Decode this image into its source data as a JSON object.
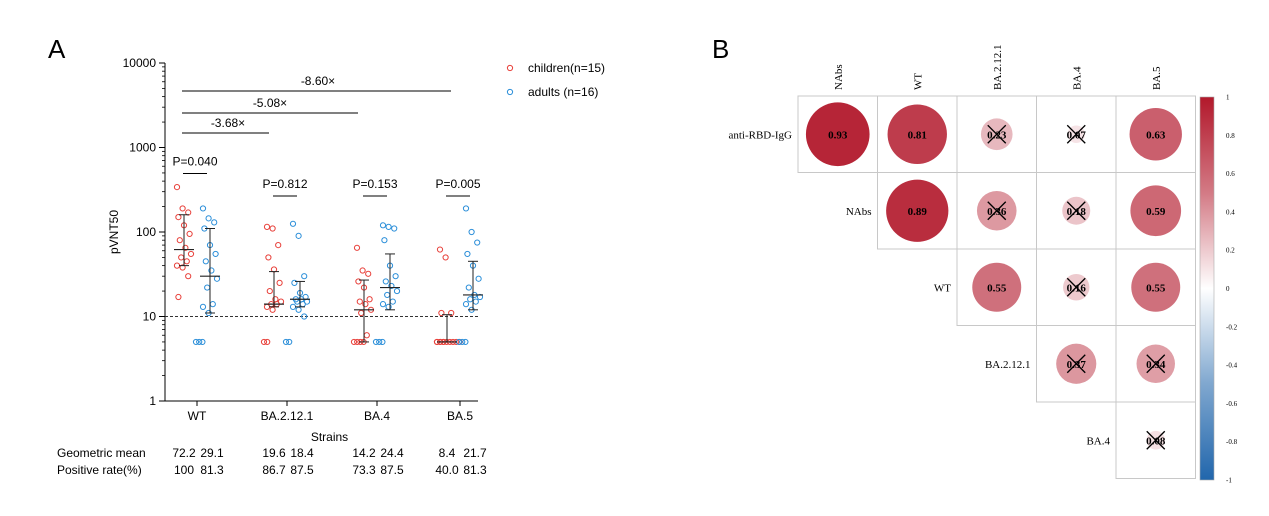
{
  "panels": {
    "a_label": "A",
    "b_label": "B"
  },
  "chart_data": [
    {
      "type": "scatter",
      "panel": "A",
      "xlabel": "Strains",
      "ylabel": "pVNT50",
      "y_scale": "log",
      "ylim": [
        1,
        10000
      ],
      "y_ticks": [
        {
          "value": 1,
          "label": "1"
        },
        {
          "value": 10,
          "label": "10"
        },
        {
          "value": 100,
          "label": "100"
        },
        {
          "value": 1000,
          "label": "1000"
        },
        {
          "value": 10000,
          "label": "10000"
        }
      ],
      "categories": [
        "WT",
        "BA.2.12.1",
        "BA.4",
        "BA.5"
      ],
      "reference_line": 10,
      "legend_position": "top-right",
      "series": [
        {
          "name": "children(n=15)",
          "color": "#e8413b",
          "values": [
            [
              340,
              190,
              170,
              150,
              120,
              95,
              80,
              65,
              55,
              50,
              45,
              40,
              38,
              30,
              17
            ],
            [
              115,
              110,
              70,
              50,
              36,
              25,
              20,
              16,
              15,
              14,
              14,
              13,
              12,
              5,
              5
            ],
            [
              65,
              35,
              32,
              26,
              22,
              16,
              15,
              14,
              12,
              11,
              6,
              5,
              5,
              5,
              5
            ],
            [
              62,
              50,
              11,
              11,
              5,
              5,
              5,
              5,
              5,
              5,
              5,
              5,
              5,
              5,
              5
            ]
          ],
          "median": [
            62,
            14,
            12,
            5
          ],
          "iqr": [
            [
              40,
              160
            ],
            [
              13,
              34
            ],
            [
              5,
              27
            ],
            [
              5,
              10.5
            ]
          ]
        },
        {
          "name": "adults (n=16)",
          "color": "#2c8fd9",
          "values": [
            [
              190,
              145,
              130,
              110,
              70,
              55,
              45,
              35,
              28,
              22,
              14,
              13,
              11,
              5,
              5,
              5
            ],
            [
              125,
              90,
              30,
              25,
              19,
              17,
              16,
              16,
              15,
              15,
              14,
              13,
              12,
              10,
              5,
              5
            ],
            [
              120,
              115,
              110,
              80,
              40,
              30,
              26,
              23,
              20,
              18,
              15,
              14,
              13,
              5,
              5,
              5
            ],
            [
              190,
              100,
              75,
              55,
              40,
              28,
              22,
              18,
              17,
              16,
              15,
              14,
              12,
              5,
              5,
              5
            ]
          ],
          "median": [
            30,
            16,
            22,
            18
          ],
          "iqr": [
            [
              11,
              110
            ],
            [
              13,
              26
            ],
            [
              12,
              55
            ],
            [
              12,
              45
            ]
          ]
        }
      ],
      "pvalue_labels": [
        "P=0.040",
        "P=0.812",
        "P=0.153",
        "P=0.005"
      ],
      "fold_changes": [
        {
          "label": "-3.68×",
          "from": 0,
          "to": 1
        },
        {
          "label": "-5.08×",
          "from": 0,
          "to": 2
        },
        {
          "label": "-8.60×",
          "from": 0,
          "to": 3
        }
      ],
      "table": {
        "rows": [
          {
            "label": "Geometric mean",
            "values": [
              [
                "72.2",
                "29.1"
              ],
              [
                "19.6",
                "18.4"
              ],
              [
                "14.2",
                "24.4"
              ],
              [
                "8.4",
                "21.7"
              ]
            ]
          },
          {
            "label": "Positive rate(%)",
            "values": [
              [
                "100",
                "81.3"
              ],
              [
                "86.7",
                "87.5"
              ],
              [
                "73.3",
                "87.5"
              ],
              [
                "40.0",
                "81.3"
              ]
            ]
          }
        ]
      }
    },
    {
      "type": "heatmap",
      "panel": "B",
      "subtype": "correlation-circles",
      "columns": [
        "NAbs",
        "WT",
        "BA.2.12.1",
        "BA.4",
        "BA.5"
      ],
      "rows": [
        "anti-RBD-IgG",
        "NAbs",
        "WT",
        "BA.2.12.1",
        "BA.4"
      ],
      "cells": [
        {
          "row": 0,
          "col": 0,
          "value": 0.93,
          "label": "0.93",
          "crossed": false
        },
        {
          "row": 0,
          "col": 1,
          "value": 0.81,
          "label": "0.81",
          "crossed": false
        },
        {
          "row": 0,
          "col": 2,
          "value": 0.23,
          "label": "0.23",
          "crossed": true
        },
        {
          "row": 0,
          "col": 3,
          "value": 0.07,
          "label": "0.07",
          "crossed": true
        },
        {
          "row": 0,
          "col": 4,
          "value": 0.63,
          "label": "0.63",
          "crossed": false
        },
        {
          "row": 1,
          "col": 1,
          "value": 0.89,
          "label": "0.89",
          "crossed": false
        },
        {
          "row": 1,
          "col": 2,
          "value": 0.36,
          "label": "0.36",
          "crossed": true
        },
        {
          "row": 1,
          "col": 3,
          "value": 0.18,
          "label": "0.18",
          "crossed": true
        },
        {
          "row": 1,
          "col": 4,
          "value": 0.59,
          "label": "0.59",
          "crossed": false
        },
        {
          "row": 2,
          "col": 2,
          "value": 0.55,
          "label": "0.55",
          "crossed": false
        },
        {
          "row": 2,
          "col": 3,
          "value": 0.16,
          "label": "0.16",
          "crossed": true
        },
        {
          "row": 2,
          "col": 4,
          "value": 0.55,
          "label": "0.55",
          "crossed": false
        },
        {
          "row": 3,
          "col": 3,
          "value": 0.37,
          "label": "0.37",
          "crossed": true
        },
        {
          "row": 3,
          "col": 4,
          "value": 0.34,
          "label": "0.34",
          "crossed": true
        },
        {
          "row": 4,
          "col": 4,
          "value": 0.08,
          "label": "0.08",
          "crossed": true
        }
      ],
      "colorbar": {
        "range": [
          -1,
          1
        ],
        "ticks": [
          "1",
          "0.8",
          "0.6",
          "0.4",
          "0.2",
          "0",
          "-0.2",
          "-0.4",
          "-0.6",
          "-0.8",
          "-1"
        ],
        "colors": {
          "positive": "#b2182b",
          "zero": "#ffffff",
          "negative": "#2166ac"
        }
      }
    }
  ]
}
